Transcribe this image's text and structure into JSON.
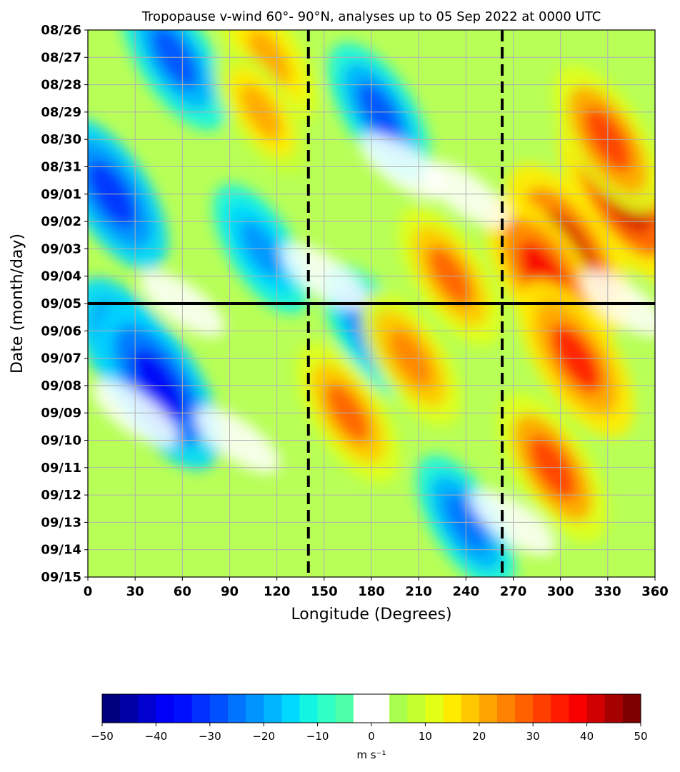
{
  "chart_data": {
    "type": "heatmap",
    "title": "Tropopause v-wind 60°- 90°N, analyses up to 05 Sep 2022 at 0000 UTC",
    "xlabel": "Longitude (Degrees)",
    "ylabel": "Date (month/day)",
    "xlim": [
      0,
      360
    ],
    "x_ticks": [
      0,
      30,
      60,
      90,
      120,
      150,
      180,
      210,
      240,
      270,
      300,
      330,
      360
    ],
    "x_tick_labels": [
      "0",
      "30",
      "60",
      "90",
      "120",
      "150",
      "180",
      "210",
      "240",
      "270",
      "300",
      "330",
      "360"
    ],
    "y_tick_labels": [
      "08/26",
      "08/27",
      "08/28",
      "08/29",
      "08/30",
      "08/31",
      "09/01",
      "09/02",
      "09/03",
      "09/04",
      "09/05",
      "09/06",
      "09/07",
      "09/08",
      "09/09",
      "09/10",
      "09/11",
      "09/12",
      "09/13",
      "09/14",
      "09/15"
    ],
    "grid": true,
    "analysis_line_date": "09/05",
    "dashed_longitudes": [
      140,
      263
    ],
    "colorbar": {
      "min": -50,
      "max": 50,
      "ticks": [
        -50,
        -40,
        -30,
        -20,
        -10,
        0,
        10,
        20,
        30,
        40,
        50
      ],
      "tick_labels": [
        "−50",
        "−40",
        "−30",
        "−20",
        "−10",
        "0",
        "10",
        "20",
        "30",
        "40",
        "50"
      ],
      "label": "m s⁻¹",
      "colors": [
        "#00007f",
        "#0000a7",
        "#0000d0",
        "#0000f9",
        "#0010ff",
        "#0030ff",
        "#0050ff",
        "#0074ff",
        "#0094ff",
        "#00b4ff",
        "#00d8ff",
        "#14f4e2",
        "#30ffc6",
        "#4dffa9",
        "#ffffff",
        "#ffffff",
        "#a9ff4d",
        "#c6ff30",
        "#e2ff14",
        "#ffeb00",
        "#ffc800",
        "#ffa500",
        "#ff8300",
        "#ff6000",
        "#ff3e00",
        "#ff1b00",
        "#f90000",
        "#d00000",
        "#a70000",
        "#7f0000"
      ]
    },
    "features": [
      {
        "lon": 30,
        "date": "09/07",
        "value": -32
      },
      {
        "lon": 45,
        "date": "09/08",
        "value": -35
      },
      {
        "lon": 15,
        "date": "09/01",
        "value": -28
      },
      {
        "lon": 55,
        "date": "08/27",
        "value": -25
      },
      {
        "lon": 185,
        "date": "08/29",
        "value": -22
      },
      {
        "lon": 110,
        "date": "09/03",
        "value": -18
      },
      {
        "lon": 180,
        "date": "09/06",
        "value": -20
      },
      {
        "lon": 240,
        "date": "09/13",
        "value": -20
      },
      {
        "lon": 340,
        "date": "09/01",
        "value": 38
      },
      {
        "lon": 305,
        "date": "09/03",
        "value": 36
      },
      {
        "lon": 290,
        "date": "09/04",
        "value": 32
      },
      {
        "lon": 310,
        "date": "09/07",
        "value": 30
      },
      {
        "lon": 295,
        "date": "09/11",
        "value": 26
      },
      {
        "lon": 330,
        "date": "08/30",
        "value": 26
      },
      {
        "lon": 230,
        "date": "09/04",
        "value": 22
      },
      {
        "lon": 205,
        "date": "09/07",
        "value": 20
      },
      {
        "lon": 165,
        "date": "09/09",
        "value": 22
      },
      {
        "lon": 115,
        "date": "08/27",
        "value": 18
      },
      {
        "lon": 110,
        "date": "08/29",
        "value": 16
      }
    ]
  }
}
